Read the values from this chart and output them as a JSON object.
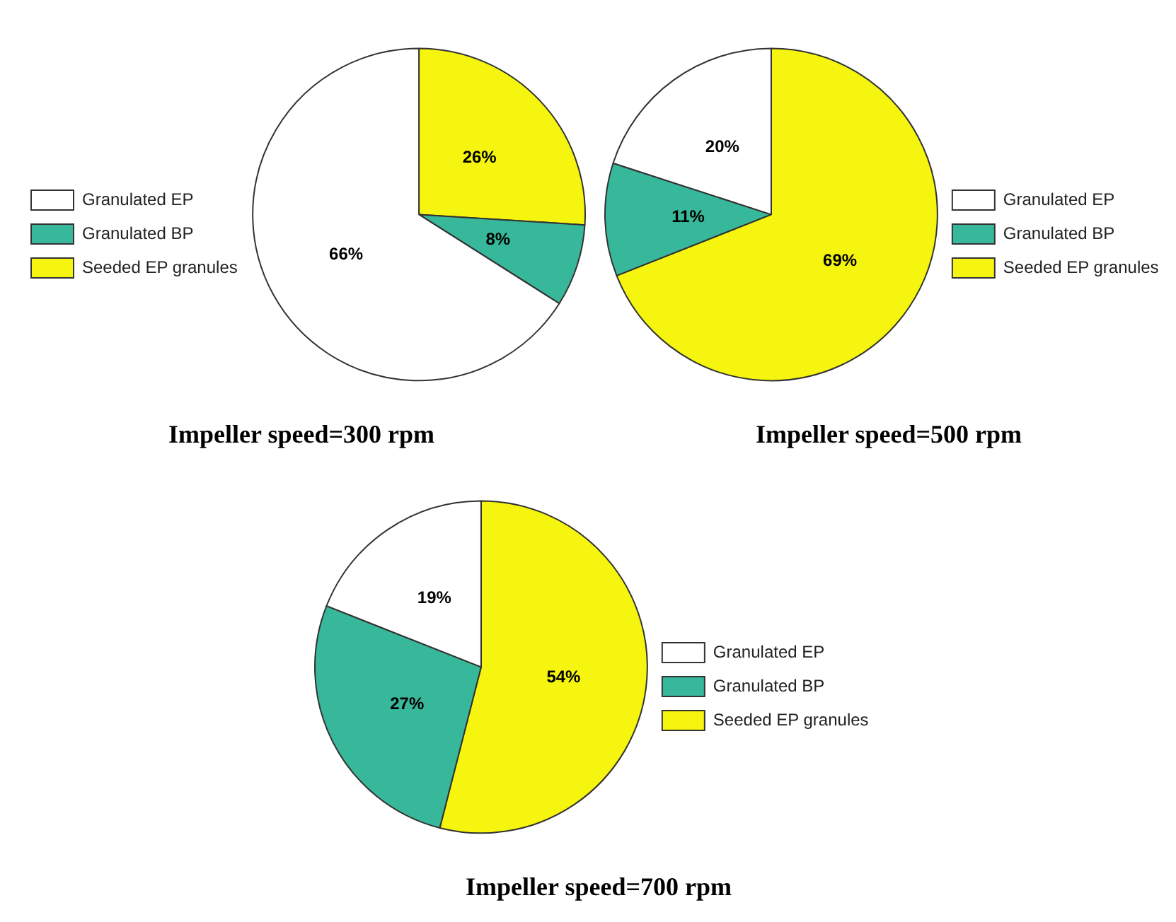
{
  "chart_data": [
    {
      "type": "pie",
      "title": "Impeller speed=300 rpm",
      "categories": [
        "Seeded EP granules",
        "Granulated BP",
        "Granulated EP"
      ],
      "values": [
        26,
        8,
        66
      ],
      "colors": [
        "#f5f50f",
        "#38b89a",
        "#ffffff"
      ],
      "value_labels": [
        "26%",
        "8%",
        "66%"
      ],
      "legend": "left"
    },
    {
      "type": "pie",
      "title": "Impeller speed=500 rpm",
      "categories": [
        "Seeded EP granules",
        "Granulated BP",
        "Granulated EP"
      ],
      "values": [
        69,
        11,
        20
      ],
      "colors": [
        "#f5f50f",
        "#38b89a",
        "#ffffff"
      ],
      "value_labels": [
        "69%",
        "11%",
        "20%"
      ],
      "legend": "right"
    },
    {
      "type": "pie",
      "title": "Impeller speed=700 rpm",
      "categories": [
        "Seeded EP granules",
        "Granulated BP",
        "Granulated EP"
      ],
      "values": [
        54,
        27,
        19
      ],
      "colors": [
        "#f5f50f",
        "#38b89a",
        "#ffffff"
      ],
      "value_labels": [
        "54%",
        "27%",
        "19%"
      ],
      "legend": "right"
    }
  ]
}
